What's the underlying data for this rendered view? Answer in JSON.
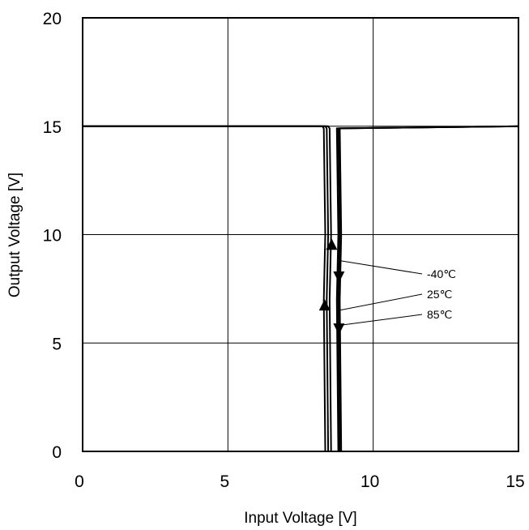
{
  "chart_data": {
    "type": "line",
    "title": "",
    "xlabel": "Input Voltage [V]",
    "ylabel": "Output Voltage [V]",
    "xlim": [
      0,
      15
    ],
    "ylim": [
      0,
      20
    ],
    "xticks": [
      0,
      5,
      10,
      15
    ],
    "yticks": [
      0,
      5,
      10,
      15,
      20
    ],
    "grid": true,
    "series": [
      {
        "name": "-40℃",
        "x": [
          0,
          8.25,
          8.3,
          8.35,
          8.3,
          8.35,
          8.9,
          8.85,
          8.9,
          8.85,
          15
        ],
        "y": [
          15,
          15,
          14.9,
          10,
          7,
          0,
          0,
          7,
          10,
          14.9,
          15
        ]
      },
      {
        "name": "25℃",
        "x": [
          0,
          8.35,
          8.4,
          8.45,
          8.4,
          8.45,
          8.85,
          8.8,
          8.85,
          8.8,
          15
        ],
        "y": [
          15,
          15,
          14.9,
          10,
          7,
          0,
          0,
          7,
          10,
          14.9,
          15
        ]
      },
      {
        "name": "85℃",
        "x": [
          0,
          8.45,
          8.5,
          8.55,
          8.5,
          8.55,
          8.8,
          8.75,
          8.8,
          8.75,
          15
        ],
        "y": [
          15,
          15,
          14.9,
          10,
          7,
          0,
          0,
          7,
          10,
          14.9,
          15
        ]
      }
    ],
    "annotations": [
      {
        "label": "-40℃",
        "point": [
          8.85,
          8.8
        ]
      },
      {
        "label": "25℃",
        "point": [
          8.8,
          6.5
        ]
      },
      {
        "label": "85℃",
        "point": [
          8.75,
          5.8
        ]
      }
    ]
  }
}
